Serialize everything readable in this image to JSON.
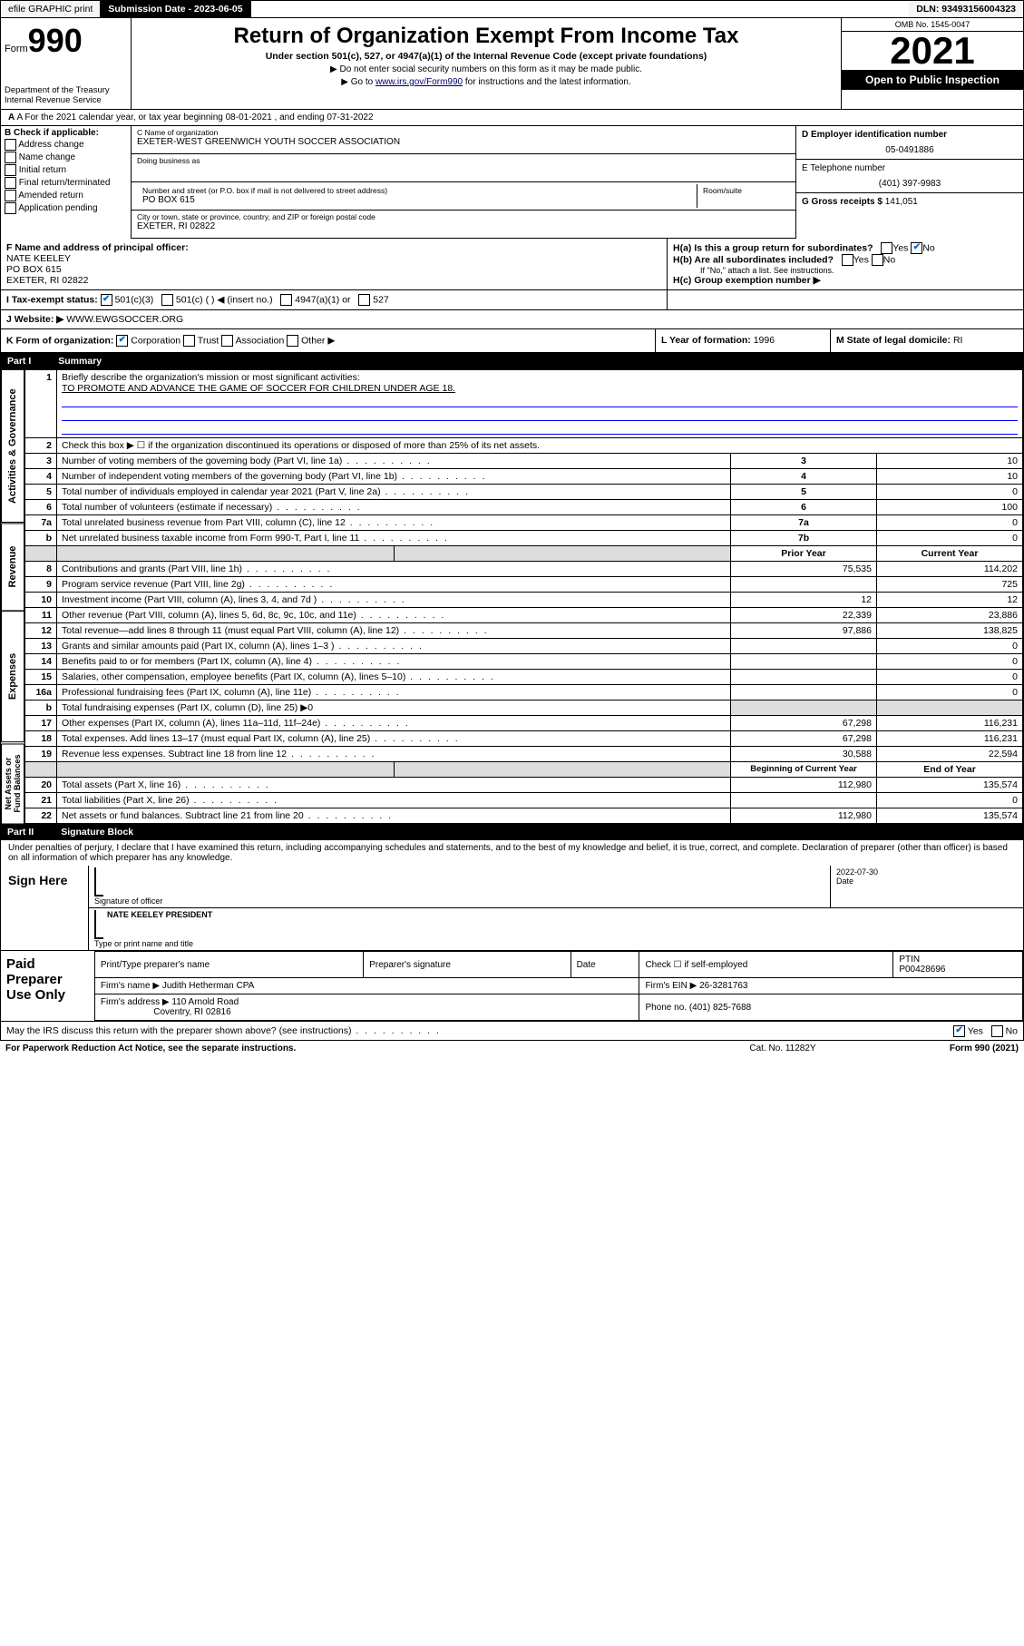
{
  "topbar": {
    "efile": "efile GRAPHIC print",
    "subdate_label": "Submission Date - 2023-06-05",
    "dln": "DLN: 93493156004323"
  },
  "header": {
    "form_label": "Form",
    "form_num": "990",
    "dept": "Department of the Treasury Internal Revenue Service",
    "title": "Return of Organization Exempt From Income Tax",
    "sub": "Under section 501(c), 527, or 4947(a)(1) of the Internal Revenue Code (except private foundations)",
    "note1": "▶ Do not enter social security numbers on this form as it may be made public.",
    "note2_pre": "▶ Go to ",
    "note2_link": "www.irs.gov/Form990",
    "note2_post": " for instructions and the latest information.",
    "omb": "OMB No. 1545-0047",
    "year": "2021",
    "open": "Open to Public Inspection"
  },
  "line_a": "A For the 2021 calendar year, or tax year beginning 08-01-2021   , and ending 07-31-2022",
  "b": {
    "hdr": "B Check if applicable:",
    "opts": [
      "Address change",
      "Name change",
      "Initial return",
      "Final return/terminated",
      "Amended return",
      "Application pending"
    ]
  },
  "c": {
    "name_lbl": "C Name of organization",
    "name": "EXETER-WEST GREENWICH YOUTH SOCCER ASSOCIATION",
    "dba_lbl": "Doing business as",
    "addr_lbl": "Number and street (or P.O. box if mail is not delivered to street address)",
    "room_lbl": "Room/suite",
    "addr": "PO BOX 615",
    "city_lbl": "City or town, state or province, country, and ZIP or foreign postal code",
    "city": "EXETER, RI  02822"
  },
  "d": {
    "ein_lbl": "D Employer identification number",
    "ein": "05-0491886",
    "tel_lbl": "E Telephone number",
    "tel": "(401) 397-9983",
    "gross_lbl": "G Gross receipts $",
    "gross": "141,051"
  },
  "f": {
    "lbl": "F Name and address of principal officer:",
    "name": "NATE KEELEY",
    "addr1": "PO BOX 615",
    "addr2": "EXETER, RI  02822"
  },
  "h": {
    "a": "H(a)  Is this a group return for subordinates?",
    "b": "H(b)  Are all subordinates included?",
    "b_note": "If \"No,\" attach a list. See instructions.",
    "c": "H(c)  Group exemption number ▶"
  },
  "i": {
    "lbl": "I   Tax-exempt status:",
    "o1": "501(c)(3)",
    "o2": "501(c) (  ) ◀ (insert no.)",
    "o3": "4947(a)(1) or",
    "o4": "527"
  },
  "j": {
    "lbl": "J   Website: ▶",
    "val": "WWW.EWGSOCCER.ORG"
  },
  "k": {
    "lbl": "K Form of organization:",
    "o1": "Corporation",
    "o2": "Trust",
    "o3": "Association",
    "o4": "Other ▶"
  },
  "l": {
    "lbl": "L Year of formation:",
    "val": "1996"
  },
  "m": {
    "lbl": "M State of legal domicile:",
    "val": "RI"
  },
  "part1": {
    "num": "Part I",
    "title": "Summary"
  },
  "s1": {
    "q": "Briefly describe the organization's mission or most significant activities:",
    "a": "TO PROMOTE AND ADVANCE THE GAME OF SOCCER FOR CHILDREN UNDER AGE 18."
  },
  "rows_gov": [
    {
      "n": "2",
      "t": "Check this box ▶ ☐  if the organization discontinued its operations or disposed of more than 25% of its net assets."
    },
    {
      "n": "3",
      "t": "Number of voting members of the governing body (Part VI, line 1a)",
      "rn": "3",
      "v": "10"
    },
    {
      "n": "4",
      "t": "Number of independent voting members of the governing body (Part VI, line 1b)",
      "rn": "4",
      "v": "10"
    },
    {
      "n": "5",
      "t": "Total number of individuals employed in calendar year 2021 (Part V, line 2a)",
      "rn": "5",
      "v": "0"
    },
    {
      "n": "6",
      "t": "Total number of volunteers (estimate if necessary)",
      "rn": "6",
      "v": "100"
    },
    {
      "n": "7a",
      "t": "Total unrelated business revenue from Part VIII, column (C), line 12",
      "rn": "7a",
      "v": "0"
    },
    {
      "n": "b",
      "t": "Net unrelated business taxable income from Form 990-T, Part I, line 11",
      "rn": "7b",
      "v": "0"
    }
  ],
  "rev_hdr": {
    "py": "Prior Year",
    "cy": "Current Year"
  },
  "rows_rev": [
    {
      "n": "8",
      "t": "Contributions and grants (Part VIII, line 1h)",
      "py": "75,535",
      "cy": "114,202"
    },
    {
      "n": "9",
      "t": "Program service revenue (Part VIII, line 2g)",
      "py": "",
      "cy": "725"
    },
    {
      "n": "10",
      "t": "Investment income (Part VIII, column (A), lines 3, 4, and 7d )",
      "py": "12",
      "cy": "12"
    },
    {
      "n": "11",
      "t": "Other revenue (Part VIII, column (A), lines 5, 6d, 8c, 9c, 10c, and 11e)",
      "py": "22,339",
      "cy": "23,886"
    },
    {
      "n": "12",
      "t": "Total revenue—add lines 8 through 11 (must equal Part VIII, column (A), line 12)",
      "py": "97,886",
      "cy": "138,825"
    }
  ],
  "rows_exp": [
    {
      "n": "13",
      "t": "Grants and similar amounts paid (Part IX, column (A), lines 1–3 )",
      "py": "",
      "cy": "0"
    },
    {
      "n": "14",
      "t": "Benefits paid to or for members (Part IX, column (A), line 4)",
      "py": "",
      "cy": "0"
    },
    {
      "n": "15",
      "t": "Salaries, other compensation, employee benefits (Part IX, column (A), lines 5–10)",
      "py": "",
      "cy": "0"
    },
    {
      "n": "16a",
      "t": "Professional fundraising fees (Part IX, column (A), line 11e)",
      "py": "",
      "cy": "0"
    },
    {
      "n": "b",
      "t": "Total fundraising expenses (Part IX, column (D), line 25) ▶0",
      "shade": true
    },
    {
      "n": "17",
      "t": "Other expenses (Part IX, column (A), lines 11a–11d, 11f–24e)",
      "py": "67,298",
      "cy": "116,231"
    },
    {
      "n": "18",
      "t": "Total expenses. Add lines 13–17 (must equal Part IX, column (A), line 25)",
      "py": "67,298",
      "cy": "116,231"
    },
    {
      "n": "19",
      "t": "Revenue less expenses. Subtract line 18 from line 12",
      "py": "30,588",
      "cy": "22,594"
    }
  ],
  "na_hdr": {
    "boy": "Beginning of Current Year",
    "eoy": "End of Year"
  },
  "rows_na": [
    {
      "n": "20",
      "t": "Total assets (Part X, line 16)",
      "py": "112,980",
      "cy": "135,574"
    },
    {
      "n": "21",
      "t": "Total liabilities (Part X, line 26)",
      "py": "",
      "cy": "0"
    },
    {
      "n": "22",
      "t": "Net assets or fund balances. Subtract line 21 from line 20",
      "py": "112,980",
      "cy": "135,574"
    }
  ],
  "tabs": {
    "g": "Activities & Governance",
    "r": "Revenue",
    "e": "Expenses",
    "n": "Net Assets or Fund Balances"
  },
  "part2": {
    "num": "Part II",
    "title": "Signature Block"
  },
  "sig": {
    "decl": "Under penalties of perjury, I declare that I have examined this return, including accompanying schedules and statements, and to the best of my knowledge and belief, it is true, correct, and complete. Declaration of preparer (other than officer) is based on all information of which preparer has any knowledge.",
    "here": "Sign Here",
    "sig_of": "Signature of officer",
    "date_lbl": "Date",
    "date": "2022-07-30",
    "name": "NATE KEELEY PRESIDENT",
    "name_lbl": "Type or print name and title"
  },
  "prep": {
    "lbl": "Paid Preparer Use Only",
    "h1": "Print/Type preparer's name",
    "h2": "Preparer's signature",
    "h3": "Date",
    "h4": "Check ☐ if self-employed",
    "h5": "PTIN",
    "ptin": "P00428696",
    "firm_lbl": "Firm's name   ▶",
    "firm": "Judith Hetherman CPA",
    "ein_lbl": "Firm's EIN ▶",
    "ein": "26-3281763",
    "addr_lbl": "Firm's address ▶",
    "addr1": "110 Arnold Road",
    "addr2": "Coventry, RI  02816",
    "ph_lbl": "Phone no.",
    "ph": "(401) 825-7688"
  },
  "may": "May the IRS discuss this return with the preparer shown above? (see instructions)",
  "foot": {
    "pra": "For Paperwork Reduction Act Notice, see the separate instructions.",
    "cat": "Cat. No. 11282Y",
    "form": "Form 990 (2021)"
  }
}
